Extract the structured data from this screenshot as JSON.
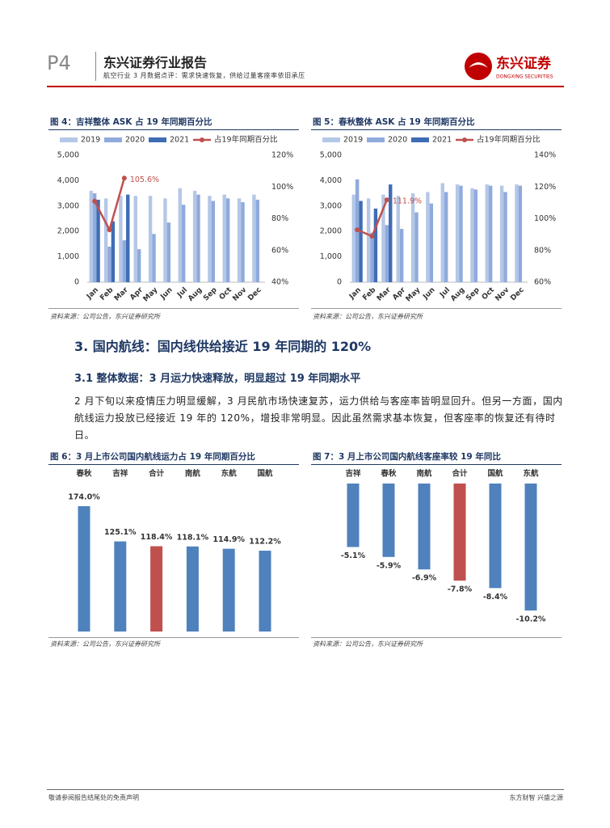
{
  "header": {
    "page": "P4",
    "brand": "东兴证券行业报告",
    "subtitle": "航空行业 3 月数据点评：需求快速恢复，供给过量客座率依旧承压",
    "logo_text": "东兴证券",
    "logo_sub": "DONGXING SECURITIES"
  },
  "section": {
    "title": "3. 国内航线：国内线供给接近 19 年同期的 120%"
  },
  "subsection": {
    "title": "3.1  整体数据：3 月运力快速释放，明显超过 19 年同期水平"
  },
  "paragraph": "2 月下旬以来疫情压力明显缓解，3 月民航市场快速复苏，运力供给与客座率皆明显回升。但另一方面，国内航线运力投放已经接近 19 年的 120%，增投非常明显。因此虽然需求基本恢复，但客座率的恢复还有待时日。",
  "footer": {
    "left": "敬请参阅报告结尾处的免责声明",
    "right": "东方财智  兴盛之源"
  },
  "chart_data": [
    {
      "type": "combo",
      "title": "图 4：吉祥整体 ASK 占 19 年同期百分比",
      "source": "资料来源：公司公告，东兴证券研究所",
      "categories": [
        "Jan",
        "Feb",
        "Mar",
        "Apr",
        "May",
        "Jun",
        "Jul",
        "Aug",
        "Sep",
        "Oct",
        "Nov",
        "Dec"
      ],
      "ylim": [
        0,
        5000
      ],
      "yticks": [
        0,
        {
          "value": 1000,
          "label": "1,000"
        },
        {
          "value": 2000,
          "label": "2,000"
        },
        {
          "value": 3000,
          "label": "3,000"
        },
        {
          "value": 4000,
          "label": "4,000"
        },
        {
          "value": 5000,
          "label": "5,000"
        }
      ],
      "y2lim": [
        40,
        120
      ],
      "y2ticks": [
        {
          "value": 40,
          "label": "40%"
        },
        {
          "value": 60,
          "label": "60%"
        },
        {
          "value": 80,
          "label": "80%"
        },
        {
          "value": 100,
          "label": "100%"
        },
        {
          "value": 120,
          "label": "120%"
        }
      ],
      "series": [
        {
          "name": "2019",
          "color": "#b4c7e7",
          "values": [
            3600,
            3300,
            3400,
            3400,
            3400,
            3300,
            3700,
            3600,
            3400,
            3450,
            3300,
            3450
          ]
        },
        {
          "name": "2020",
          "color": "#8faadc",
          "values": [
            3500,
            1400,
            1650,
            1300,
            1900,
            2350,
            3050,
            3450,
            3200,
            3300,
            3150,
            3250
          ]
        },
        {
          "name": "2021",
          "color": "#3f6db5",
          "values": [
            3250,
            2400,
            3450,
            null,
            null,
            null,
            null,
            null,
            null,
            null,
            null,
            null
          ]
        },
        {
          "name": "占19年同期百分比",
          "color": "#c0504d",
          "axis": "y2",
          "values": [
            91,
            73,
            105.6,
            null,
            null,
            null,
            null,
            null,
            null,
            null,
            null,
            null
          ],
          "value_labels": [
            null,
            null,
            "105.6%",
            null,
            null,
            null,
            null,
            null,
            null,
            null,
            null,
            null
          ]
        }
      ]
    },
    {
      "type": "combo",
      "title": "图 5：春秋整体 ASK 占 19 年同期百分比",
      "source": "资料来源：公司公告，东兴证券研究所",
      "categories": [
        "Jan",
        "Feb",
        "Mar",
        "Apr",
        "May",
        "Jun",
        "Jul",
        "Aug",
        "Sep",
        "Oct",
        "Nov",
        "Dec"
      ],
      "ylim": [
        0,
        5000
      ],
      "yticks": [
        0,
        {
          "value": 1000,
          "label": "1,000"
        },
        {
          "value": 2000,
          "label": "2,000"
        },
        {
          "value": 3000,
          "label": "3,000"
        },
        {
          "value": 4000,
          "label": "4,000"
        },
        {
          "value": 5000,
          "label": "5,000"
        }
      ],
      "y2lim": [
        60,
        140
      ],
      "y2ticks": [
        {
          "value": 60,
          "label": "60%"
        },
        {
          "value": 80,
          "label": "80%"
        },
        {
          "value": 100,
          "label": "100%"
        },
        {
          "value": 120,
          "label": "120%"
        },
        {
          "value": 140,
          "label": "140%"
        }
      ],
      "series": [
        {
          "name": "2019",
          "color": "#b4c7e7",
          "values": [
            3450,
            3300,
            3450,
            3400,
            3500,
            3550,
            3900,
            3850,
            3700,
            3850,
            3800,
            3850
          ]
        },
        {
          "name": "2020",
          "color": "#8faadc",
          "values": [
            4050,
            1950,
            2250,
            2100,
            2750,
            3100,
            3550,
            3800,
            3650,
            3800,
            3550,
            3800
          ]
        },
        {
          "name": "2021",
          "color": "#3f6db5",
          "values": [
            3200,
            2900,
            3850,
            null,
            null,
            null,
            null,
            null,
            null,
            null,
            null,
            null
          ]
        },
        {
          "name": "占19年同期百分比",
          "color": "#c0504d",
          "axis": "y2",
          "values": [
            93,
            89,
            111.9,
            null,
            null,
            null,
            null,
            null,
            null,
            null,
            null,
            null
          ],
          "value_labels": [
            null,
            null,
            "111.9%",
            null,
            null,
            null,
            null,
            null,
            null,
            null,
            null,
            null
          ]
        }
      ]
    },
    {
      "type": "bar",
      "title": "图 6：3 月上市公司国内航线运力占 19 年同期百分比",
      "source": "资料来源：公司公告，东兴证券研究所",
      "categories": [
        "春秋",
        "吉祥",
        "合计",
        "南航",
        "东航",
        "国航"
      ],
      "values": [
        174.0,
        125.1,
        118.4,
        118.1,
        114.9,
        112.2
      ],
      "value_labels": [
        "174.0%",
        "125.1%",
        "118.4%",
        "118.1%",
        "114.9%",
        "112.2%"
      ],
      "colors": [
        "#4f81bd",
        "#4f81bd",
        "#c0504d",
        "#4f81bd",
        "#4f81bd",
        "#4f81bd"
      ]
    },
    {
      "type": "bar",
      "title": "图 7：3 月上市公司国内航线客座率较 19 年同比",
      "source": "资料来源：公司公告，东兴证券研究所",
      "categories": [
        "吉祥",
        "春秋",
        "南航",
        "合计",
        "国航",
        "东航"
      ],
      "values": [
        -5.1,
        -5.9,
        -6.9,
        -7.8,
        -8.4,
        -10.2
      ],
      "value_labels": [
        "-5.1%",
        "-5.9%",
        "-6.9%",
        "-7.8%",
        "-8.4%",
        "-10.2%"
      ],
      "colors": [
        "#4f81bd",
        "#4f81bd",
        "#4f81bd",
        "#c0504d",
        "#4f81bd",
        "#4f81bd"
      ]
    }
  ]
}
